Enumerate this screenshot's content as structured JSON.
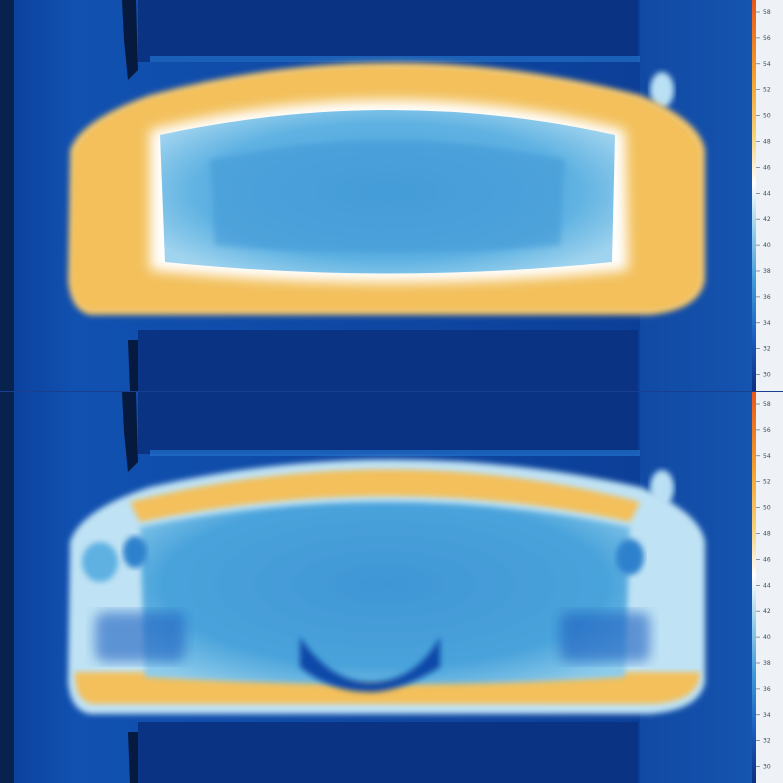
{
  "colorbar": {
    "ticks": [
      "58",
      "56",
      "54",
      "52",
      "50",
      "48",
      "46",
      "44",
      "42",
      "40",
      "38",
      "36",
      "34",
      "32",
      "30"
    ],
    "stops": [
      {
        "color": "#e8571a",
        "pos": 0
      },
      {
        "color": "#f2a22e",
        "pos": 0.2
      },
      {
        "color": "#f7d27a",
        "pos": 0.35
      },
      {
        "color": "#ffffff",
        "pos": 0.47
      },
      {
        "color": "#9fd3ee",
        "pos": 0.58
      },
      {
        "color": "#3f9ad8",
        "pos": 0.72
      },
      {
        "color": "#1a5fbf",
        "pos": 0.86
      },
      {
        "color": "#0b2f83",
        "pos": 1
      }
    ]
  },
  "panels": [
    {
      "name": "top",
      "state": "uniform"
    },
    {
      "name": "bottom",
      "state": "non-uniform"
    }
  ]
}
